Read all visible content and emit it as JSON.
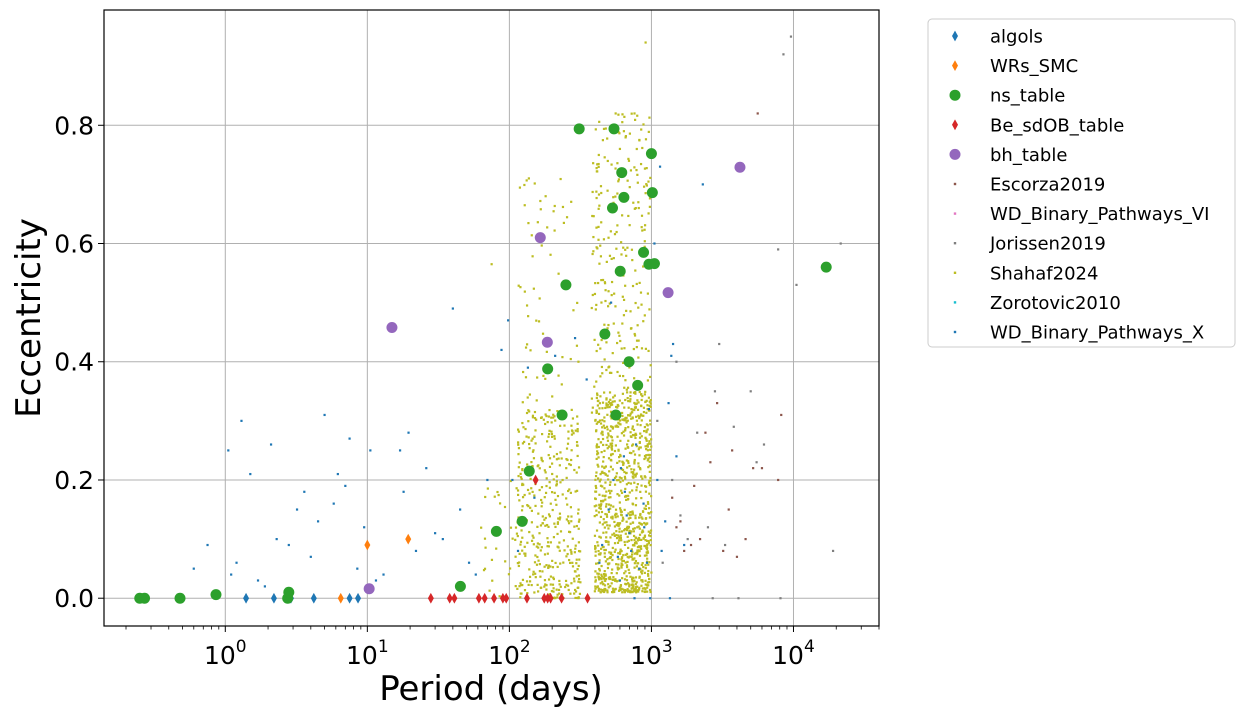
{
  "chart_data": {
    "type": "scatter",
    "xlabel": "Period (days)",
    "ylabel": "Eccentricity",
    "xscale": "log",
    "xlim": [
      0.14,
      40000
    ],
    "ylim": [
      -0.047,
      0.995
    ],
    "grid": true,
    "legend_position": "outside-right",
    "x_ticks": [
      {
        "value": 1,
        "base": "10",
        "exp": "0"
      },
      {
        "value": 10,
        "base": "10",
        "exp": "1"
      },
      {
        "value": 100,
        "base": "10",
        "exp": "2"
      },
      {
        "value": 1000,
        "base": "10",
        "exp": "3"
      },
      {
        "value": 10000,
        "base": "10",
        "exp": "4"
      }
    ],
    "y_ticks": [
      {
        "value": 0.0,
        "label": "0.0"
      },
      {
        "value": 0.2,
        "label": "0.2"
      },
      {
        "value": 0.4,
        "label": "0.4"
      },
      {
        "value": 0.6,
        "label": "0.6"
      },
      {
        "value": 0.8,
        "label": "0.8"
      }
    ],
    "series": [
      {
        "name": "algols",
        "marker": "diamond",
        "color": "#1f77b4",
        "size": 6,
        "points": [
          [
            1.4,
            0
          ],
          [
            2.2,
            0
          ],
          [
            2.9,
            0
          ],
          [
            4.2,
            0
          ],
          [
            7.5,
            0
          ],
          [
            8.6,
            0
          ]
        ]
      },
      {
        "name": "WRs_SMC",
        "marker": "diamond",
        "color": "#ff7f0e",
        "size": 6,
        "points": [
          [
            6.5,
            0
          ],
          [
            10.0,
            0.09
          ],
          [
            19.4,
            0.1
          ]
        ]
      },
      {
        "name": "ns_table",
        "marker": "circle",
        "color": "#2ca02c",
        "size": 11,
        "points": [
          [
            0.25,
            0
          ],
          [
            0.27,
            0
          ],
          [
            0.48,
            0
          ],
          [
            0.86,
            0.006
          ],
          [
            2.75,
            0
          ],
          [
            2.8,
            0.01
          ],
          [
            45.2,
            0.02
          ],
          [
            81,
            0.113
          ],
          [
            123,
            0.13
          ],
          [
            138,
            0.215
          ],
          [
            186,
            0.388
          ],
          [
            235,
            0.31
          ],
          [
            310,
            0.794
          ],
          [
            250,
            0.53
          ],
          [
            470,
            0.447
          ],
          [
            532,
            0.66
          ],
          [
            545,
            0.794
          ],
          [
            562,
            0.31
          ],
          [
            603,
            0.553
          ],
          [
            618,
            0.72
          ],
          [
            640,
            0.678
          ],
          [
            696,
            0.4
          ],
          [
            800,
            0.36
          ],
          [
            880,
            0.585
          ],
          [
            960,
            0.565
          ],
          [
            1000,
            0.752
          ],
          [
            1015,
            0.686
          ],
          [
            1050,
            0.566
          ],
          [
            17000,
            0.56
          ]
        ]
      },
      {
        "name": "Be_sdOB_table",
        "marker": "diamond",
        "color": "#d62728",
        "size": 6,
        "points": [
          [
            28,
            0
          ],
          [
            38,
            0
          ],
          [
            41,
            0
          ],
          [
            61,
            0
          ],
          [
            67,
            0
          ],
          [
            78,
            0
          ],
          [
            90,
            0
          ],
          [
            95,
            0
          ],
          [
            133,
            0
          ],
          [
            153,
            0.2
          ],
          [
            176,
            0
          ],
          [
            186,
            0
          ],
          [
            195,
            0
          ],
          [
            233,
            0
          ],
          [
            355,
            0
          ]
        ]
      },
      {
        "name": "bh_table",
        "marker": "circle",
        "color": "#9467bd",
        "size": 11,
        "points": [
          [
            10.3,
            0.016
          ],
          [
            14.9,
            0.458
          ],
          [
            165,
            0.61
          ],
          [
            185,
            0.433
          ],
          [
            1310,
            0.517
          ],
          [
            4200,
            0.729
          ]
        ]
      },
      {
        "name": "Escorza2019",
        "marker": "dot",
        "color": "#8c564b",
        "size": 2.2,
        "points": [
          [
            1500,
            0.12
          ],
          [
            1700,
            0.08
          ],
          [
            2000,
            0.19
          ],
          [
            2200,
            0.1
          ],
          [
            2600,
            0.23
          ],
          [
            2900,
            0.33
          ],
          [
            3200,
            0.08
          ],
          [
            3500,
            0.15
          ],
          [
            4000,
            0.07
          ],
          [
            4600,
            0.1
          ],
          [
            5200,
            0.22
          ],
          [
            5600,
            0.82
          ],
          [
            6000,
            0.22
          ],
          [
            7800,
            0.2
          ],
          [
            8200,
            0.31
          ],
          [
            1400,
            0.17
          ],
          [
            1600,
            0.13
          ],
          [
            1900,
            0.09
          ],
          [
            2400,
            0.28
          ],
          [
            3700,
            0.25
          ]
        ]
      },
      {
        "name": "WD_Binary_Pathways_VI",
        "marker": "dot",
        "color": "#e377c2",
        "size": 2.2,
        "points": []
      },
      {
        "name": "Jorissen2019",
        "marker": "dot",
        "color": "#7f7f7f",
        "size": 2.2,
        "points": [
          [
            1100,
            0.3
          ],
          [
            1200,
            0.06
          ],
          [
            1400,
            0.2
          ],
          [
            1600,
            0.14
          ],
          [
            1800,
            0.1
          ],
          [
            2100,
            0.28
          ],
          [
            2500,
            0.12
          ],
          [
            2700,
            0.0
          ],
          [
            3000,
            0.43
          ],
          [
            3300,
            0.09
          ],
          [
            3800,
            0.29
          ],
          [
            4100,
            0.0
          ],
          [
            5000,
            0.35
          ],
          [
            5500,
            0.23
          ],
          [
            6200,
            0.26
          ],
          [
            7800,
            0.59
          ],
          [
            8100,
            0.0
          ],
          [
            8500,
            0.92
          ],
          [
            9600,
            0.95
          ],
          [
            10500,
            0.53
          ],
          [
            21500,
            0.6
          ],
          [
            19000,
            0.08
          ],
          [
            2800,
            0.35
          ],
          [
            1500,
            0.4
          ]
        ]
      },
      {
        "name": "Shahaf2024",
        "marker": "dot",
        "color": "#bcbd22",
        "size": 2.2,
        "generated": true,
        "clusters": [
          {
            "n": 900,
            "log_x_range": [
              2.6,
              3.0
            ],
            "y_range": [
              0.01,
              0.35
            ]
          },
          {
            "n": 280,
            "log_x_range": [
              2.58,
              3.0
            ],
            "y_range": [
              0.3,
              0.82
            ]
          },
          {
            "n": 380,
            "log_x_range": [
              2.05,
              2.5
            ],
            "y_range": [
              0.0,
              0.32
            ]
          },
          {
            "n": 60,
            "log_x_range": [
              2.05,
              2.5
            ],
            "y_range": [
              0.3,
              0.73
            ]
          },
          {
            "n": 40,
            "log_x_range": [
              1.8,
              2.2
            ],
            "y_range": [
              0.0,
              0.2
            ]
          }
        ],
        "points": [
          [
            910,
            0.94
          ],
          [
            560,
            0.82
          ],
          [
            760,
            0.82
          ],
          [
            640,
            0.79
          ],
          [
            180,
            0.68
          ],
          [
            600,
            0.76
          ],
          [
            75,
            0.565
          ]
        ]
      },
      {
        "name": "Zorotovic2010",
        "marker": "dot",
        "color": "#17becf",
        "size": 2.2,
        "points": []
      },
      {
        "name": "WD_Binary_Pathways_X",
        "marker": "dot",
        "color": "#1f77b4",
        "size": 2.2,
        "points": [
          [
            0.6,
            0.05
          ],
          [
            0.75,
            0.09
          ],
          [
            1.05,
            0.25
          ],
          [
            1.1,
            0.04
          ],
          [
            1.2,
            0.06
          ],
          [
            1.3,
            0.3
          ],
          [
            1.5,
            0.21
          ],
          [
            1.7,
            0.03
          ],
          [
            1.9,
            0.02
          ],
          [
            2.1,
            0.26
          ],
          [
            2.3,
            0.1
          ],
          [
            2.8,
            0.09
          ],
          [
            3.2,
            0.15
          ],
          [
            3.6,
            0.18
          ],
          [
            4.0,
            0.07
          ],
          [
            4.5,
            0.13
          ],
          [
            5.0,
            0.31
          ],
          [
            5.8,
            0.16
          ],
          [
            6.2,
            0.21
          ],
          [
            7.0,
            0.19
          ],
          [
            7.5,
            0.27
          ],
          [
            8.5,
            0.05
          ],
          [
            9.5,
            0.12
          ],
          [
            10.5,
            0.25
          ],
          [
            11.5,
            0.03
          ],
          [
            13.0,
            0.04
          ],
          [
            15.0,
            0.46
          ],
          [
            17.0,
            0.25
          ],
          [
            18.0,
            0.18
          ],
          [
            19.5,
            0.28
          ],
          [
            22.0,
            0.08
          ],
          [
            26.0,
            0.22
          ],
          [
            30.0,
            0.11
          ],
          [
            34.0,
            0.1
          ],
          [
            40.0,
            0.49
          ],
          [
            45.0,
            0.15
          ],
          [
            52.0,
            0.06
          ],
          [
            58.0,
            0.04
          ],
          [
            70.0,
            0.2
          ],
          [
            88.0,
            0.42
          ],
          [
            98.0,
            0.47
          ],
          [
            105.0,
            0.2
          ],
          [
            115.0,
            0.08
          ],
          [
            135.0,
            0.39
          ],
          [
            150.0,
            0.17
          ],
          [
            210.0,
            0.41
          ],
          [
            290.0,
            0.44
          ],
          [
            350.0,
            0.37
          ],
          [
            430.0,
            0.06
          ],
          [
            520.0,
            0.5
          ],
          [
            640.0,
            0.24
          ],
          [
            720.0,
            0.08
          ],
          [
            890.0,
            0.12
          ],
          [
            1050.0,
            0.6
          ],
          [
            1100.0,
            0.2
          ],
          [
            1150.0,
            0.73
          ],
          [
            1180.0,
            0.08
          ],
          [
            1250.0,
            0.13
          ],
          [
            1320.0,
            0.33
          ],
          [
            1380.0,
            0.41
          ],
          [
            1420.0,
            0.43
          ],
          [
            1500.0,
            0.24
          ],
          [
            1700.0,
            0.09
          ],
          [
            2300.0,
            0.7
          ],
          [
            1350.0,
            0.0
          ],
          [
            980.0,
            0.0
          ],
          [
            760.0,
            0.0
          ],
          [
            600,
            0.03
          ],
          [
            500,
            0.15
          ],
          [
            650,
            0.18
          ],
          [
            820,
            0.05
          ],
          [
            700,
            0.11
          ],
          [
            580,
            0.07
          ],
          [
            880,
            0.16
          ],
          [
            450,
            0.09
          ],
          [
            540,
            0.2
          ],
          [
            780,
            0.26
          ],
          [
            960,
            0.32
          ],
          [
            670,
            0.14
          ],
          [
            930,
            0.06
          ],
          [
            610,
            0.22
          ]
        ]
      }
    ]
  }
}
